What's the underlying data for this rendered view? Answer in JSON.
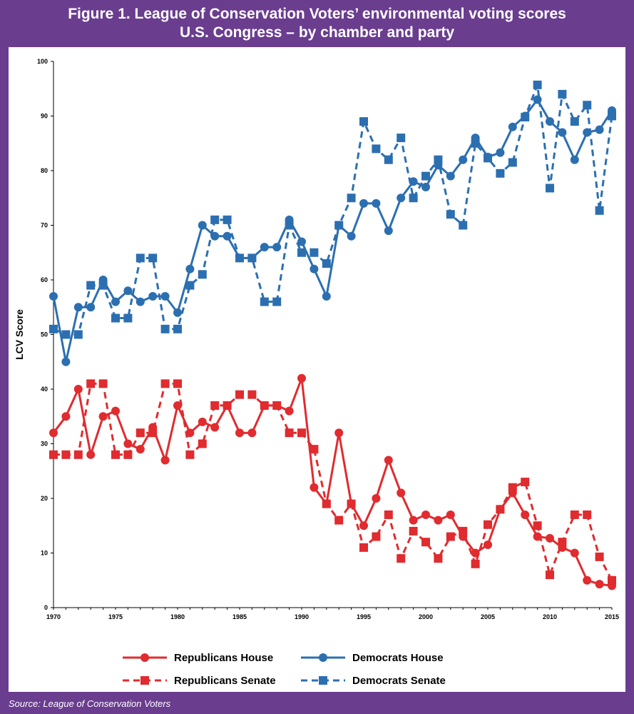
{
  "header": {
    "title_line1": "Figure 1.  League of Conservation Voters’ environmental voting scores",
    "title_line2": "U.S. Congress – by chamber and party"
  },
  "footer": {
    "source": "Source:  League of Conservation Voters"
  },
  "colors": {
    "republican": "#e02b2f",
    "democrat": "#2c6fb0",
    "frame": "#6a3d8f"
  },
  "chart_data": {
    "type": "line",
    "title": "Figure 1.  League of Conservation Voters’ environmental voting scores",
    "subtitle": "U.S. Congress – by chamber and party",
    "xlabel": "",
    "ylabel": "LCV Score",
    "xlim": [
      1970,
      2015
    ],
    "ylim": [
      0,
      100
    ],
    "x_ticks": [
      1970,
      1975,
      1980,
      1985,
      1990,
      1995,
      2000,
      2005,
      2010,
      2015
    ],
    "y_ticks": [
      0,
      10,
      20,
      30,
      40,
      50,
      60,
      70,
      80,
      90,
      100
    ],
    "grid": false,
    "legend_position": "bottom",
    "x": [
      1970,
      1971,
      1972,
      1973,
      1974,
      1975,
      1976,
      1977,
      1978,
      1979,
      1980,
      1981,
      1982,
      1983,
      1984,
      1985,
      1986,
      1987,
      1988,
      1989,
      1990,
      1991,
      1992,
      1993,
      1994,
      1995,
      1996,
      1997,
      1998,
      1999,
      2000,
      2001,
      2002,
      2003,
      2004,
      2005,
      2006,
      2007,
      2008,
      2009,
      2010,
      2011,
      2012,
      2013,
      2014,
      2015
    ],
    "series": [
      {
        "name": "Republicans House",
        "color": "#e02b2f",
        "style": "solid",
        "marker": "circle",
        "values": [
          32,
          35,
          40,
          28,
          35,
          36,
          30,
          29,
          33,
          27,
          37,
          32,
          34,
          33,
          37,
          32,
          32,
          37,
          37,
          36,
          42,
          22,
          19,
          32,
          19,
          15,
          20,
          27,
          21,
          16,
          17,
          16,
          17,
          13,
          10,
          11.5,
          18,
          21,
          17,
          13,
          12.7,
          11,
          10,
          5,
          4.3,
          4
        ]
      },
      {
        "name": "Democrats House",
        "color": "#2c6fb0",
        "style": "solid",
        "marker": "circle",
        "values": [
          57,
          45,
          55,
          55,
          60,
          56,
          58,
          56,
          57,
          57,
          54,
          62,
          70,
          68,
          68,
          64,
          64,
          66,
          66,
          71,
          67,
          62,
          57,
          70,
          68,
          74,
          74,
          69,
          75,
          78,
          77,
          81,
          79,
          82,
          86,
          82.5,
          83.3,
          88,
          90,
          93,
          89,
          87,
          82,
          87,
          87.5,
          91
        ]
      },
      {
        "name": "Republicans Senate",
        "color": "#e02b2f",
        "style": "dashed",
        "marker": "square",
        "values": [
          28,
          28,
          28,
          41,
          41,
          28,
          28,
          32,
          32,
          41,
          41,
          28,
          30,
          37,
          37,
          39,
          39,
          37,
          37,
          32,
          32,
          29,
          19,
          16,
          19,
          11,
          13,
          17,
          9,
          14,
          12,
          9,
          13,
          14,
          8,
          15.2,
          18,
          22,
          23,
          15,
          6,
          12,
          17,
          17,
          9.3,
          5
        ]
      },
      {
        "name": "Democrats Senate",
        "color": "#2c6fb0",
        "style": "dashed",
        "marker": "square",
        "values": [
          51,
          50,
          50,
          59,
          59,
          53,
          53,
          64,
          64,
          51,
          51,
          59,
          61,
          71,
          71,
          64,
          64,
          56,
          56,
          70,
          65,
          65,
          63,
          70,
          75,
          89,
          84,
          82,
          86,
          75,
          79,
          82,
          72,
          70,
          85,
          82.3,
          79.5,
          81.5,
          89.8,
          95.7,
          76.8,
          94,
          89,
          92,
          72.7,
          90
        ]
      }
    ]
  }
}
